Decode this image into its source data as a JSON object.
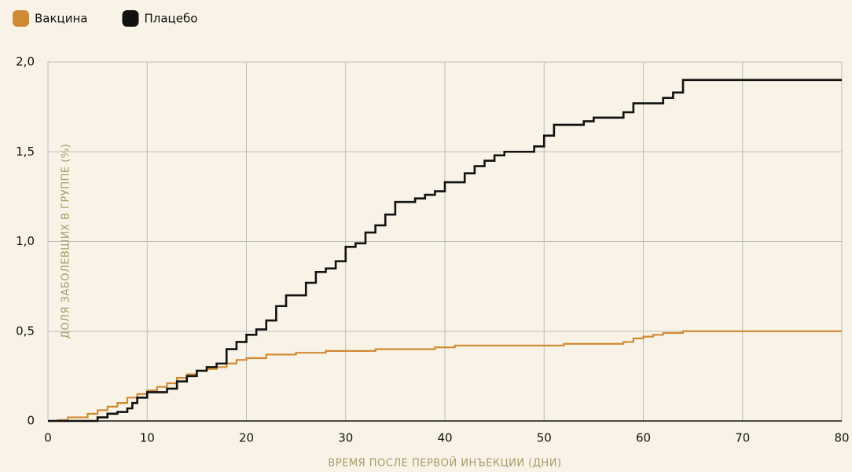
{
  "chart_data": {
    "type": "line",
    "drawstyle": "steps-post",
    "xlabel": "ВРЕМЯ ПОСЛЕ ПЕРВОЙ ИНЪЕКЦИИ (ДНИ)",
    "ylabel": "ДОЛЯ ЗАБОЛЕВШИХ В ГРУППЕ (%)",
    "xlim": [
      0,
      80
    ],
    "xticks": [
      0,
      10,
      20,
      30,
      40,
      50,
      60,
      70,
      80
    ],
    "ylim": [
      0,
      2.0
    ],
    "yticks": [
      0,
      {
        "value": 0.5,
        "label": "0,5"
      },
      {
        "value": 1.0,
        "label": "1,0"
      },
      {
        "value": 1.5,
        "label": "1,5"
      },
      {
        "value": 2.0,
        "label": "2,0"
      }
    ],
    "grid": true,
    "legend": "top-left",
    "series": [
      {
        "name": "Вакцина",
        "color": "#d08a35",
        "x": [
          0,
          1,
          2,
          4,
          5,
          6,
          7,
          8,
          9,
          10,
          11,
          12,
          13,
          14,
          15,
          16,
          17,
          18,
          19,
          20,
          22,
          25,
          28,
          33,
          39,
          41,
          52,
          58,
          59,
          60,
          61,
          62,
          64,
          80
        ],
        "values": [
          0,
          0.005,
          0.02,
          0.04,
          0.06,
          0.08,
          0.1,
          0.13,
          0.15,
          0.17,
          0.19,
          0.21,
          0.24,
          0.26,
          0.28,
          0.29,
          0.3,
          0.32,
          0.34,
          0.35,
          0.37,
          0.38,
          0.39,
          0.4,
          0.41,
          0.42,
          0.43,
          0.44,
          0.46,
          0.47,
          0.48,
          0.49,
          0.5,
          0.5
        ]
      },
      {
        "name": "Плацебо",
        "color": "#111111",
        "x": [
          0,
          5,
          6,
          7,
          8,
          8.5,
          9,
          10,
          12,
          13,
          14,
          15,
          16,
          17,
          18,
          19,
          20,
          21,
          22,
          23,
          24,
          26,
          27,
          28,
          29,
          30,
          31,
          32,
          33,
          34,
          35,
          37,
          38,
          39,
          40,
          42,
          43,
          44,
          45,
          46,
          49,
          50,
          51,
          54,
          55,
          58,
          59,
          62,
          63,
          64,
          80
        ],
        "values": [
          0,
          0.02,
          0.04,
          0.05,
          0.07,
          0.1,
          0.13,
          0.16,
          0.18,
          0.22,
          0.25,
          0.28,
          0.3,
          0.32,
          0.4,
          0.44,
          0.48,
          0.51,
          0.56,
          0.64,
          0.7,
          0.77,
          0.83,
          0.85,
          0.89,
          0.97,
          0.99,
          1.05,
          1.09,
          1.15,
          1.22,
          1.24,
          1.26,
          1.28,
          1.33,
          1.38,
          1.42,
          1.45,
          1.48,
          1.5,
          1.53,
          1.59,
          1.65,
          1.67,
          1.69,
          1.72,
          1.77,
          1.8,
          1.83,
          1.9,
          1.9
        ]
      }
    ]
  }
}
